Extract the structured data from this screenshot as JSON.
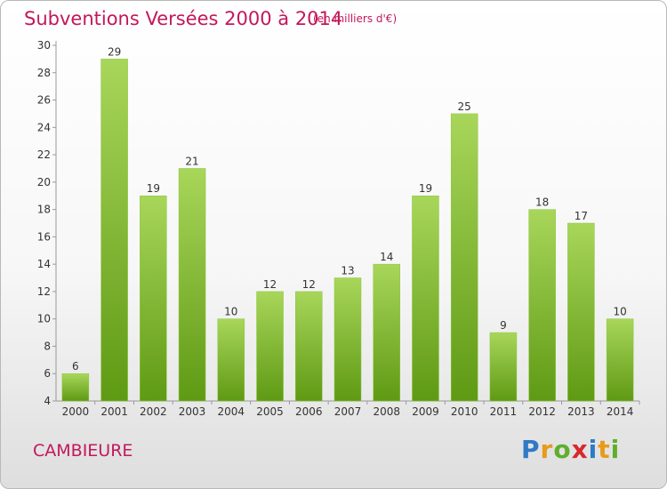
{
  "header": {
    "title": "Subventions Versées 2000 à 2014",
    "unit": "(en milliers d'€)"
  },
  "footer": {
    "commune": "CAMBIEURE",
    "logo": "Proxiti"
  },
  "colors": {
    "title": "#c2185b",
    "bar_light": "#a8d65a",
    "bar_dark": "#5f9a14"
  },
  "chart_data": {
    "type": "bar",
    "title": "Subventions Versées 2000 à 2014",
    "subtitle": "(en milliers d'€)",
    "categories": [
      "2000",
      "2001",
      "2002",
      "2003",
      "2004",
      "2005",
      "2006",
      "2007",
      "2008",
      "2009",
      "2010",
      "2011",
      "2012",
      "2013",
      "2014"
    ],
    "values": [
      6,
      29,
      19,
      21,
      10,
      12,
      12,
      13,
      14,
      19,
      25,
      9,
      18,
      17,
      10
    ],
    "ylim": [
      4,
      30
    ],
    "yticks": [
      4,
      6,
      8,
      10,
      12,
      14,
      16,
      18,
      20,
      22,
      24,
      26,
      28,
      30
    ],
    "grid": false,
    "data_labels": true
  }
}
